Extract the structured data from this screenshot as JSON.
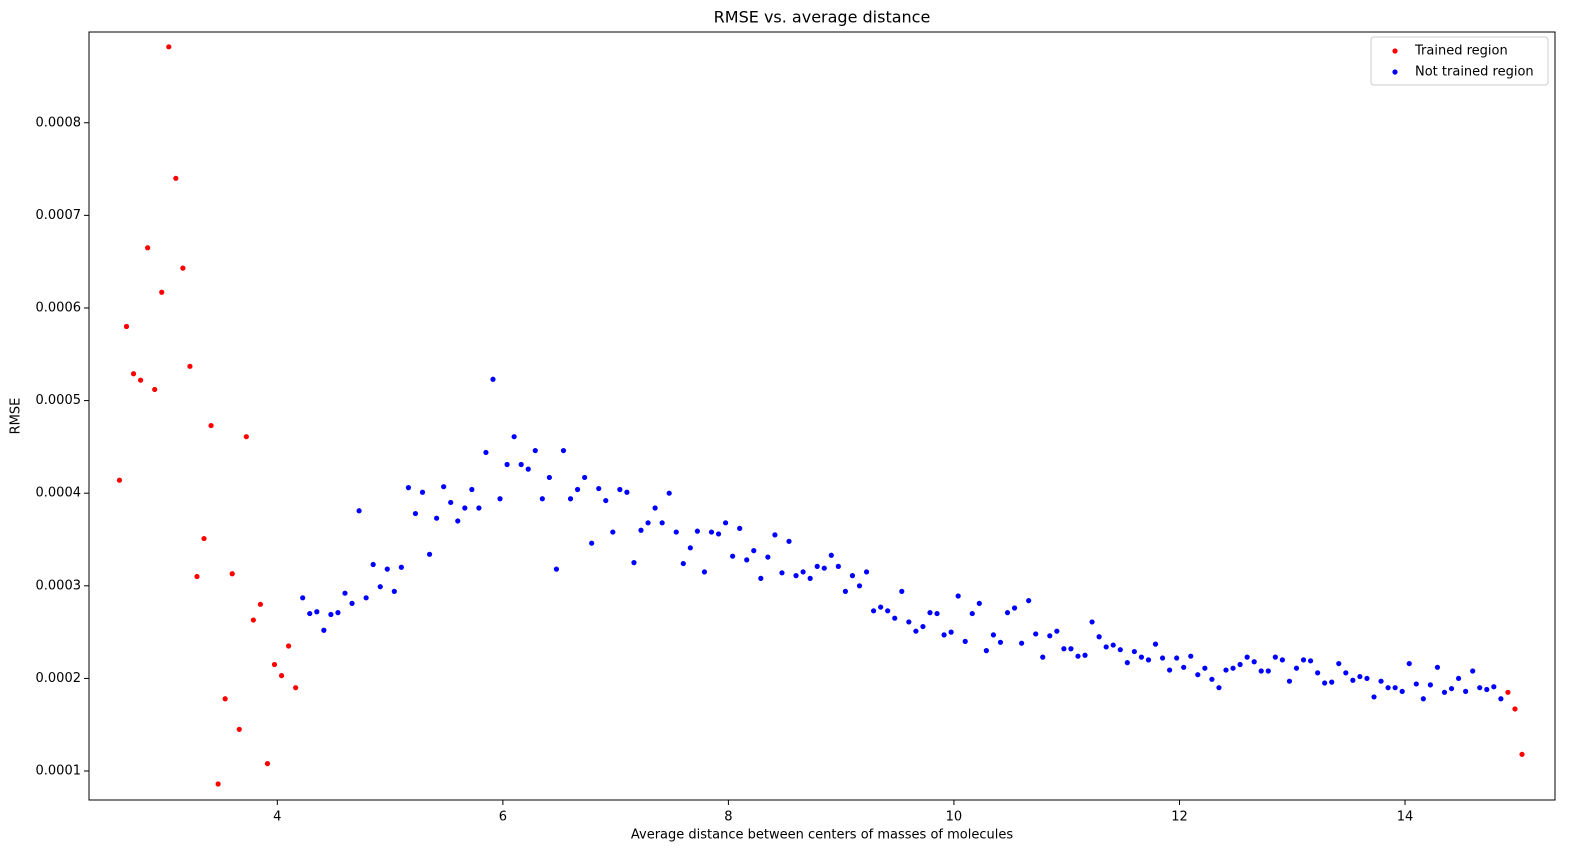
{
  "chart_data": {
    "type": "scatter",
    "title": "RMSE vs. average distance",
    "x_label": "Average distance between centers of masses of molecules",
    "y_label": "RMSE",
    "xlim": [
      2.33,
      15.33
    ],
    "ylim": [
      6.87e-05,
      0.000898
    ],
    "xticks": [
      4,
      6,
      8,
      10,
      12,
      14
    ],
    "yticks": [
      0.0001,
      0.0002,
      0.0003,
      0.0004,
      0.0005,
      0.0006,
      0.0007,
      0.0008
    ],
    "legend": "upper right",
    "series": [
      {
        "name": "Trained region",
        "color": "#ff0000",
        "x": [
          2.6,
          2.6625,
          2.725,
          2.7875,
          2.85,
          2.9125,
          2.975,
          3.0375,
          3.1,
          3.1625,
          3.225,
          3.2875,
          3.35,
          3.4125,
          3.475,
          3.5375,
          3.6,
          3.6625,
          3.725,
          3.7875,
          3.85,
          3.9125,
          3.975,
          4.0375,
          4.1,
          4.1625,
          14.9125,
          14.975,
          15.0375
        ],
        "values": [
          0.000414,
          0.00058,
          0.000529,
          0.000522,
          0.000665,
          0.000512,
          0.000617,
          0.000882,
          0.00074,
          0.000643,
          0.000537,
          0.00031,
          0.000351,
          0.000473,
          8.6e-05,
          0.000178,
          0.000313,
          0.000145,
          0.000461,
          0.000263,
          0.00028,
          0.000108,
          0.000215,
          0.000203,
          0.000235,
          0.00019,
          0.000185,
          0.000167,
          0.000118
        ]
      },
      {
        "name": "Not trained region",
        "color": "#0000ff",
        "x": [
          4.225,
          4.2875,
          4.35,
          4.4125,
          4.475,
          4.5375,
          4.6,
          4.6625,
          4.725,
          4.7875,
          4.85,
          4.9125,
          4.975,
          5.0375,
          5.1,
          5.1625,
          5.225,
          5.2875,
          5.35,
          5.4125,
          5.475,
          5.5375,
          5.6,
          5.6625,
          5.725,
          5.7875,
          5.85,
          5.9125,
          5.975,
          6.0375,
          6.1,
          6.1625,
          6.225,
          6.2875,
          6.35,
          6.4125,
          6.475,
          6.5375,
          6.6,
          6.6625,
          6.725,
          6.7875,
          6.85,
          6.9125,
          6.975,
          7.0375,
          7.1,
          7.1625,
          7.225,
          7.2875,
          7.35,
          7.4125,
          7.475,
          7.5375,
          7.6,
          7.6625,
          7.725,
          7.7875,
          7.85,
          7.9125,
          7.975,
          8.0375,
          8.1,
          8.1625,
          8.225,
          8.2875,
          8.35,
          8.4125,
          8.475,
          8.5375,
          8.6,
          8.6625,
          8.725,
          8.7875,
          8.85,
          8.9125,
          8.975,
          9.0375,
          9.1,
          9.1625,
          9.225,
          9.2875,
          9.35,
          9.4125,
          9.475,
          9.5375,
          9.6,
          9.6625,
          9.725,
          9.7875,
          9.85,
          9.9125,
          9.975,
          10.0375,
          10.1,
          10.1625,
          10.225,
          10.2875,
          10.35,
          10.4125,
          10.475,
          10.5375,
          10.6,
          10.6625,
          10.725,
          10.7875,
          10.85,
          10.9125,
          10.975,
          11.0375,
          11.1,
          11.1625,
          11.225,
          11.2875,
          11.35,
          11.4125,
          11.475,
          11.5375,
          11.6,
          11.6625,
          11.725,
          11.7875,
          11.85,
          11.9125,
          11.975,
          12.0375,
          12.1,
          12.1625,
          12.225,
          12.2875,
          12.35,
          12.4125,
          12.475,
          12.5375,
          12.6,
          12.6625,
          12.725,
          12.7875,
          12.85,
          12.9125,
          12.975,
          13.0375,
          13.1,
          13.1625,
          13.225,
          13.2875,
          13.35,
          13.4125,
          13.475,
          13.5375,
          13.6,
          13.6625,
          13.725,
          13.7875,
          13.85,
          13.9125,
          13.975,
          14.0375,
          14.1,
          14.1625,
          14.225,
          14.2875,
          14.35,
          14.4125,
          14.475,
          14.5375,
          14.6,
          14.6625,
          14.725,
          14.7875,
          14.85
        ],
        "values": [
          0.000287,
          0.00027,
          0.000272,
          0.000252,
          0.000269,
          0.000271,
          0.000292,
          0.000281,
          0.000381,
          0.000287,
          0.000323,
          0.000299,
          0.000318,
          0.000294,
          0.00032,
          0.000406,
          0.000378,
          0.000401,
          0.000334,
          0.000373,
          0.000407,
          0.00039,
          0.00037,
          0.000384,
          0.000404,
          0.000384,
          0.000444,
          0.000523,
          0.000394,
          0.000431,
          0.000461,
          0.000431,
          0.000426,
          0.000446,
          0.000394,
          0.000417,
          0.000318,
          0.000446,
          0.000394,
          0.000404,
          0.000417,
          0.000346,
          0.000405,
          0.000392,
          0.000358,
          0.000404,
          0.000401,
          0.000325,
          0.00036,
          0.000368,
          0.000384,
          0.000368,
          0.0004,
          0.000358,
          0.000324,
          0.000341,
          0.000359,
          0.000315,
          0.000358,
          0.000356,
          0.000368,
          0.000332,
          0.000362,
          0.000328,
          0.000338,
          0.000308,
          0.000331,
          0.000355,
          0.000314,
          0.000348,
          0.000311,
          0.000315,
          0.000308,
          0.000321,
          0.000319,
          0.000333,
          0.000321,
          0.000294,
          0.000311,
          0.0003,
          0.000315,
          0.000273,
          0.000277,
          0.000273,
          0.000265,
          0.000294,
          0.000261,
          0.000251,
          0.000256,
          0.000271,
          0.00027,
          0.000247,
          0.00025,
          0.000289,
          0.00024,
          0.00027,
          0.000281,
          0.00023,
          0.000247,
          0.000239,
          0.000271,
          0.000276,
          0.000238,
          0.000284,
          0.000248,
          0.000223,
          0.000246,
          0.000251,
          0.000232,
          0.000232,
          0.000224,
          0.000225,
          0.000261,
          0.000245,
          0.000234,
          0.000236,
          0.000231,
          0.000217,
          0.000229,
          0.000223,
          0.00022,
          0.000237,
          0.000222,
          0.000209,
          0.000222,
          0.000212,
          0.000224,
          0.000204,
          0.000211,
          0.000199,
          0.00019,
          0.000209,
          0.000211,
          0.000215,
          0.000223,
          0.000218,
          0.000208,
          0.000208,
          0.000223,
          0.00022,
          0.000197,
          0.000211,
          0.00022,
          0.000219,
          0.000206,
          0.000195,
          0.000196,
          0.000216,
          0.000206,
          0.000198,
          0.000202,
          0.0002,
          0.00018,
          0.000197,
          0.00019,
          0.00019,
          0.000186,
          0.000216,
          0.000194,
          0.000178,
          0.000193,
          0.000212,
          0.000185,
          0.000189,
          0.0002,
          0.000186,
          0.000208,
          0.00019,
          0.000188,
          0.000191,
          0.000178
        ]
      }
    ]
  }
}
